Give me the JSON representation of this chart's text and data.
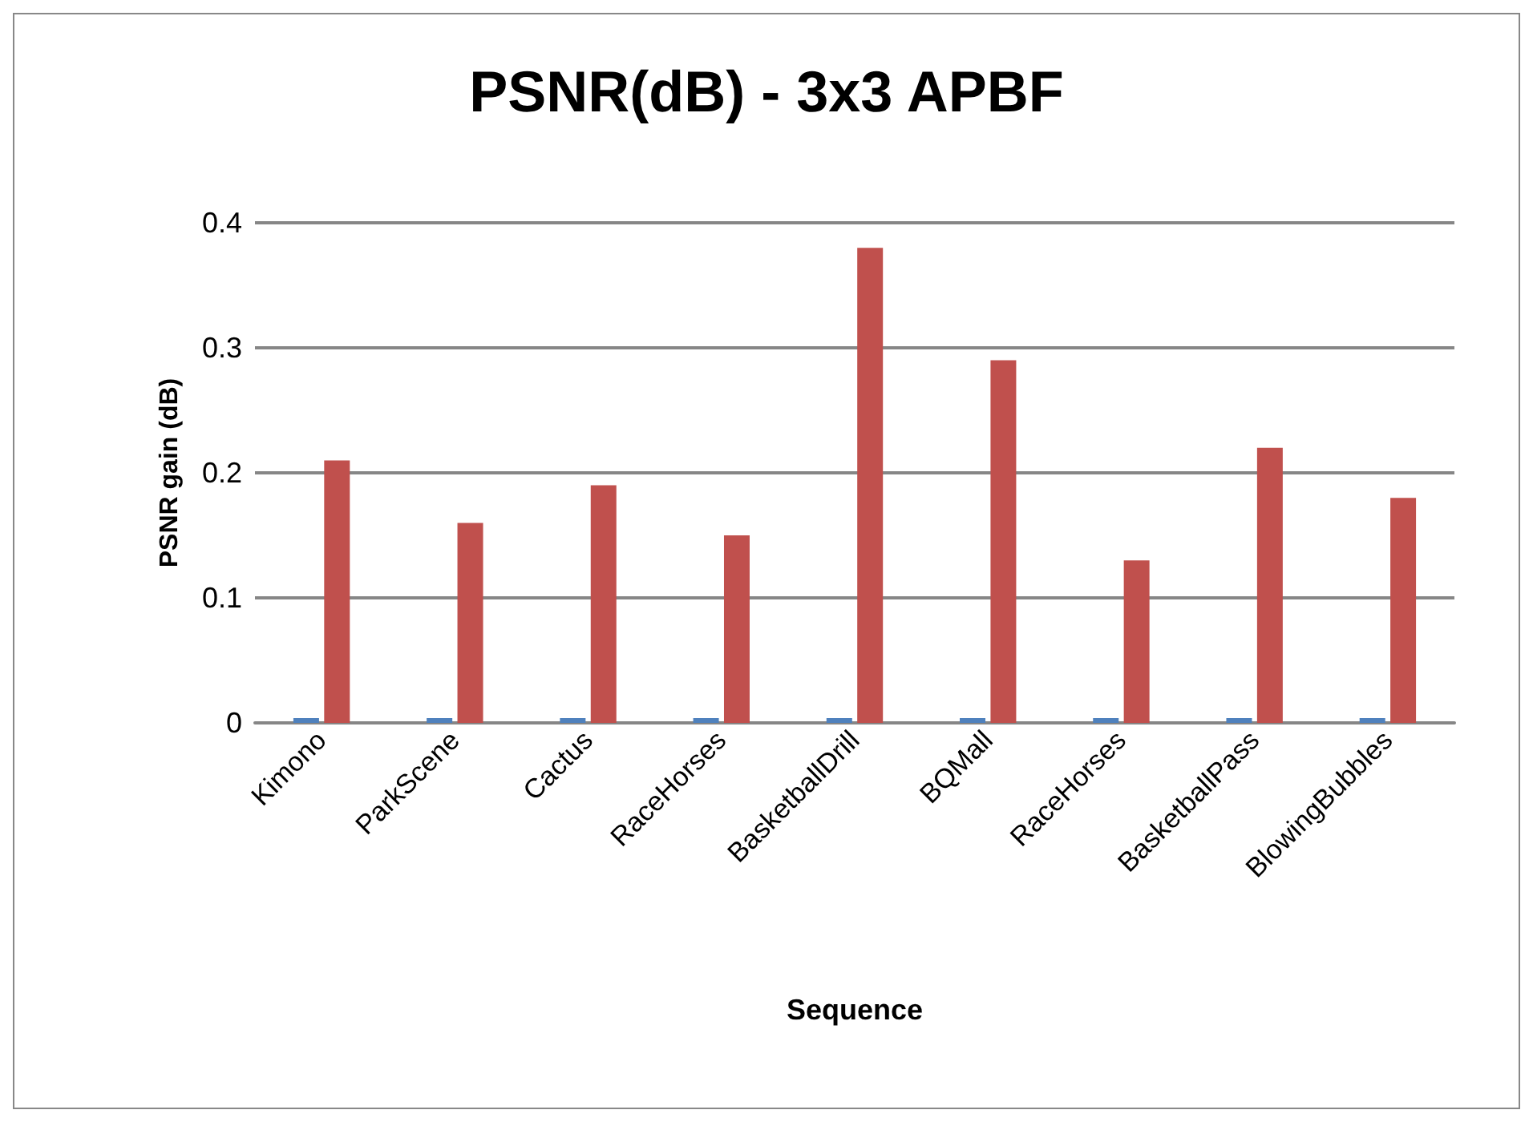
{
  "chart_data": {
    "type": "bar",
    "title": "PSNR(dB) - 3x3 APBF",
    "xlabel": "Sequence",
    "ylabel": "PSNR gain (dB)",
    "categories": [
      "Kimono",
      "ParkScene",
      "Cactus",
      "RaceHorses",
      "BasketballDrill",
      "BQMall",
      "RaceHorses",
      "BasketballPass",
      "BlowingBubbles"
    ],
    "series": [
      {
        "color": "#4f81bd",
        "values": [
          0,
          0,
          0,
          0,
          0,
          0,
          0,
          0,
          0
        ]
      },
      {
        "color": "#c0504d",
        "values": [
          0.21,
          0.16,
          0.19,
          0.15,
          0.38,
          0.29,
          0.13,
          0.22,
          0.18
        ]
      }
    ],
    "ylim": [
      0,
      0.4
    ],
    "yticks": [
      0,
      0.1,
      0.2,
      0.3,
      0.4
    ],
    "grid": "y"
  }
}
